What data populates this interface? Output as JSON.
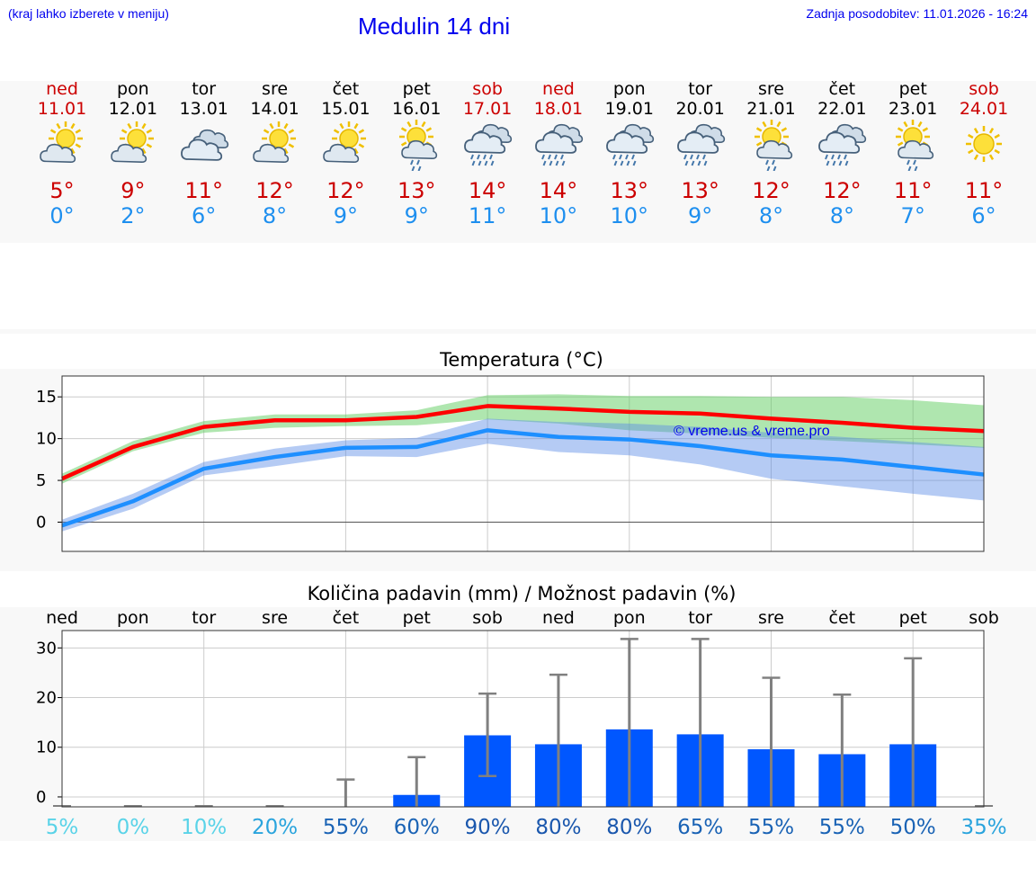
{
  "header": {
    "hint": "(kraj lahko izberete v meniju)",
    "title": "Medulin 14 dni",
    "updated": "Zadnja posodobitev: 11.01.2026 - 16:24"
  },
  "days": [
    {
      "name": "ned",
      "date": "11.01",
      "weekend": true,
      "icon": "sun-cloud-icon",
      "max": "5°",
      "min": "0°"
    },
    {
      "name": "pon",
      "date": "12.01",
      "weekend": false,
      "icon": "sun-cloud-icon",
      "max": "9°",
      "min": "2°"
    },
    {
      "name": "tor",
      "date": "13.01",
      "weekend": false,
      "icon": "cloudy-icon",
      "max": "11°",
      "min": "6°"
    },
    {
      "name": "sre",
      "date": "14.01",
      "weekend": false,
      "icon": "sun-cloud-icon",
      "max": "12°",
      "min": "8°"
    },
    {
      "name": "čet",
      "date": "15.01",
      "weekend": false,
      "icon": "sun-cloud-icon",
      "max": "12°",
      "min": "9°"
    },
    {
      "name": "pet",
      "date": "16.01",
      "weekend": false,
      "icon": "sun-cloud-drizzle-icon",
      "max": "13°",
      "min": "9°"
    },
    {
      "name": "sob",
      "date": "17.01",
      "weekend": true,
      "icon": "cloud-rain-icon",
      "max": "14°",
      "min": "11°"
    },
    {
      "name": "ned",
      "date": "18.01",
      "weekend": true,
      "icon": "cloud-rain-icon",
      "max": "14°",
      "min": "10°"
    },
    {
      "name": "pon",
      "date": "19.01",
      "weekend": false,
      "icon": "cloud-rain-icon",
      "max": "13°",
      "min": "10°"
    },
    {
      "name": "tor",
      "date": "20.01",
      "weekend": false,
      "icon": "cloud-rain-icon",
      "max": "13°",
      "min": "9°"
    },
    {
      "name": "sre",
      "date": "21.01",
      "weekend": false,
      "icon": "sun-cloud-drizzle-icon",
      "max": "12°",
      "min": "8°"
    },
    {
      "name": "čet",
      "date": "22.01",
      "weekend": false,
      "icon": "cloud-rain-icon",
      "max": "12°",
      "min": "8°"
    },
    {
      "name": "pet",
      "date": "23.01",
      "weekend": false,
      "icon": "sun-cloud-drizzle-icon",
      "max": "11°",
      "min": "7°"
    },
    {
      "name": "sob",
      "date": "24.01",
      "weekend": true,
      "icon": "sun-icon",
      "max": "11°",
      "min": "6°"
    }
  ],
  "chart_data": [
    {
      "type": "line",
      "title": "Temperatura (°C)",
      "watermark": "© vreme.us & vreme.pro",
      "x": [
        0,
        1,
        2,
        3,
        4,
        5,
        6,
        7,
        8,
        9,
        10,
        11,
        12,
        13
      ],
      "ylim": [
        -3.5,
        17.5
      ],
      "yticks": [
        "15",
        "10",
        "5",
        "0"
      ],
      "ytick_values": [
        15,
        10,
        5,
        0
      ],
      "series": [
        {
          "name": "max",
          "color": "#ff0000",
          "values": [
            5.2,
            9.0,
            11.4,
            12.2,
            12.2,
            12.6,
            13.9,
            13.6,
            13.2,
            13.0,
            12.4,
            11.9,
            11.3,
            10.9
          ],
          "band_low": [
            4.6,
            8.5,
            10.7,
            11.3,
            11.5,
            11.6,
            12.3,
            11.8,
            11.0,
            10.6,
            10.1,
            9.7,
            9.3,
            8.9
          ],
          "band_high": [
            5.8,
            9.7,
            12.1,
            12.9,
            12.9,
            13.4,
            15.2,
            15.3,
            15.1,
            15.1,
            15.0,
            15.0,
            14.6,
            14.0
          ]
        },
        {
          "name": "min",
          "color": "#1e8fff",
          "values": [
            -0.4,
            2.5,
            6.4,
            7.8,
            8.9,
            9.0,
            11.0,
            10.2,
            9.9,
            9.1,
            8.0,
            7.5,
            6.6,
            5.7
          ],
          "band_low": [
            -1.1,
            1.6,
            5.6,
            6.7,
            7.9,
            7.8,
            9.4,
            8.4,
            8.0,
            6.9,
            5.2,
            4.3,
            3.4,
            2.6
          ],
          "band_high": [
            0.3,
            3.4,
            7.2,
            8.8,
            9.8,
            10.1,
            12.4,
            12.0,
            11.8,
            11.4,
            10.7,
            10.2,
            9.6,
            9.0
          ]
        }
      ]
    },
    {
      "type": "bar",
      "title": "Količina padavin (mm) / Možnost padavin (%)",
      "categories": [
        "ned",
        "pon",
        "tor",
        "sre",
        "čet",
        "pet",
        "sob",
        "ned",
        "pon",
        "tor",
        "sre",
        "čet",
        "pet",
        "sob"
      ],
      "values": [
        0,
        0,
        0,
        0,
        0,
        0.4,
        12.4,
        10.6,
        13.6,
        12.6,
        9.6,
        8.6,
        10.6,
        0
      ],
      "error_low": [
        0,
        0,
        0,
        0,
        0,
        0,
        4.2,
        0,
        0,
        0,
        0,
        0,
        0,
        0
      ],
      "error_high": [
        0,
        0,
        0,
        0,
        3.5,
        8.0,
        20.8,
        24.6,
        31.8,
        31.8,
        24.0,
        20.6,
        27.9,
        0
      ],
      "ylim": [
        -2,
        33.5
      ],
      "yticks": [
        "30",
        "20",
        "10",
        "0"
      ],
      "ytick_values": [
        30,
        20,
        10,
        0
      ],
      "probabilities": [
        "5%",
        "0%",
        "10%",
        "20%",
        "55%",
        "60%",
        "90%",
        "80%",
        "80%",
        "65%",
        "55%",
        "55%",
        "50%",
        "35%"
      ],
      "probability_colors": [
        "#5ad3e8",
        "#5ad3e8",
        "#5ad3e8",
        "#2aa4dd",
        "#1a63b5",
        "#1a63b5",
        "#1a57ad",
        "#1a57ad",
        "#1a57ad",
        "#1a63b5",
        "#1a63b5",
        "#1a63b5",
        "#1a63b5",
        "#2aa4dd"
      ],
      "bar_color": "#0057ff"
    }
  ]
}
